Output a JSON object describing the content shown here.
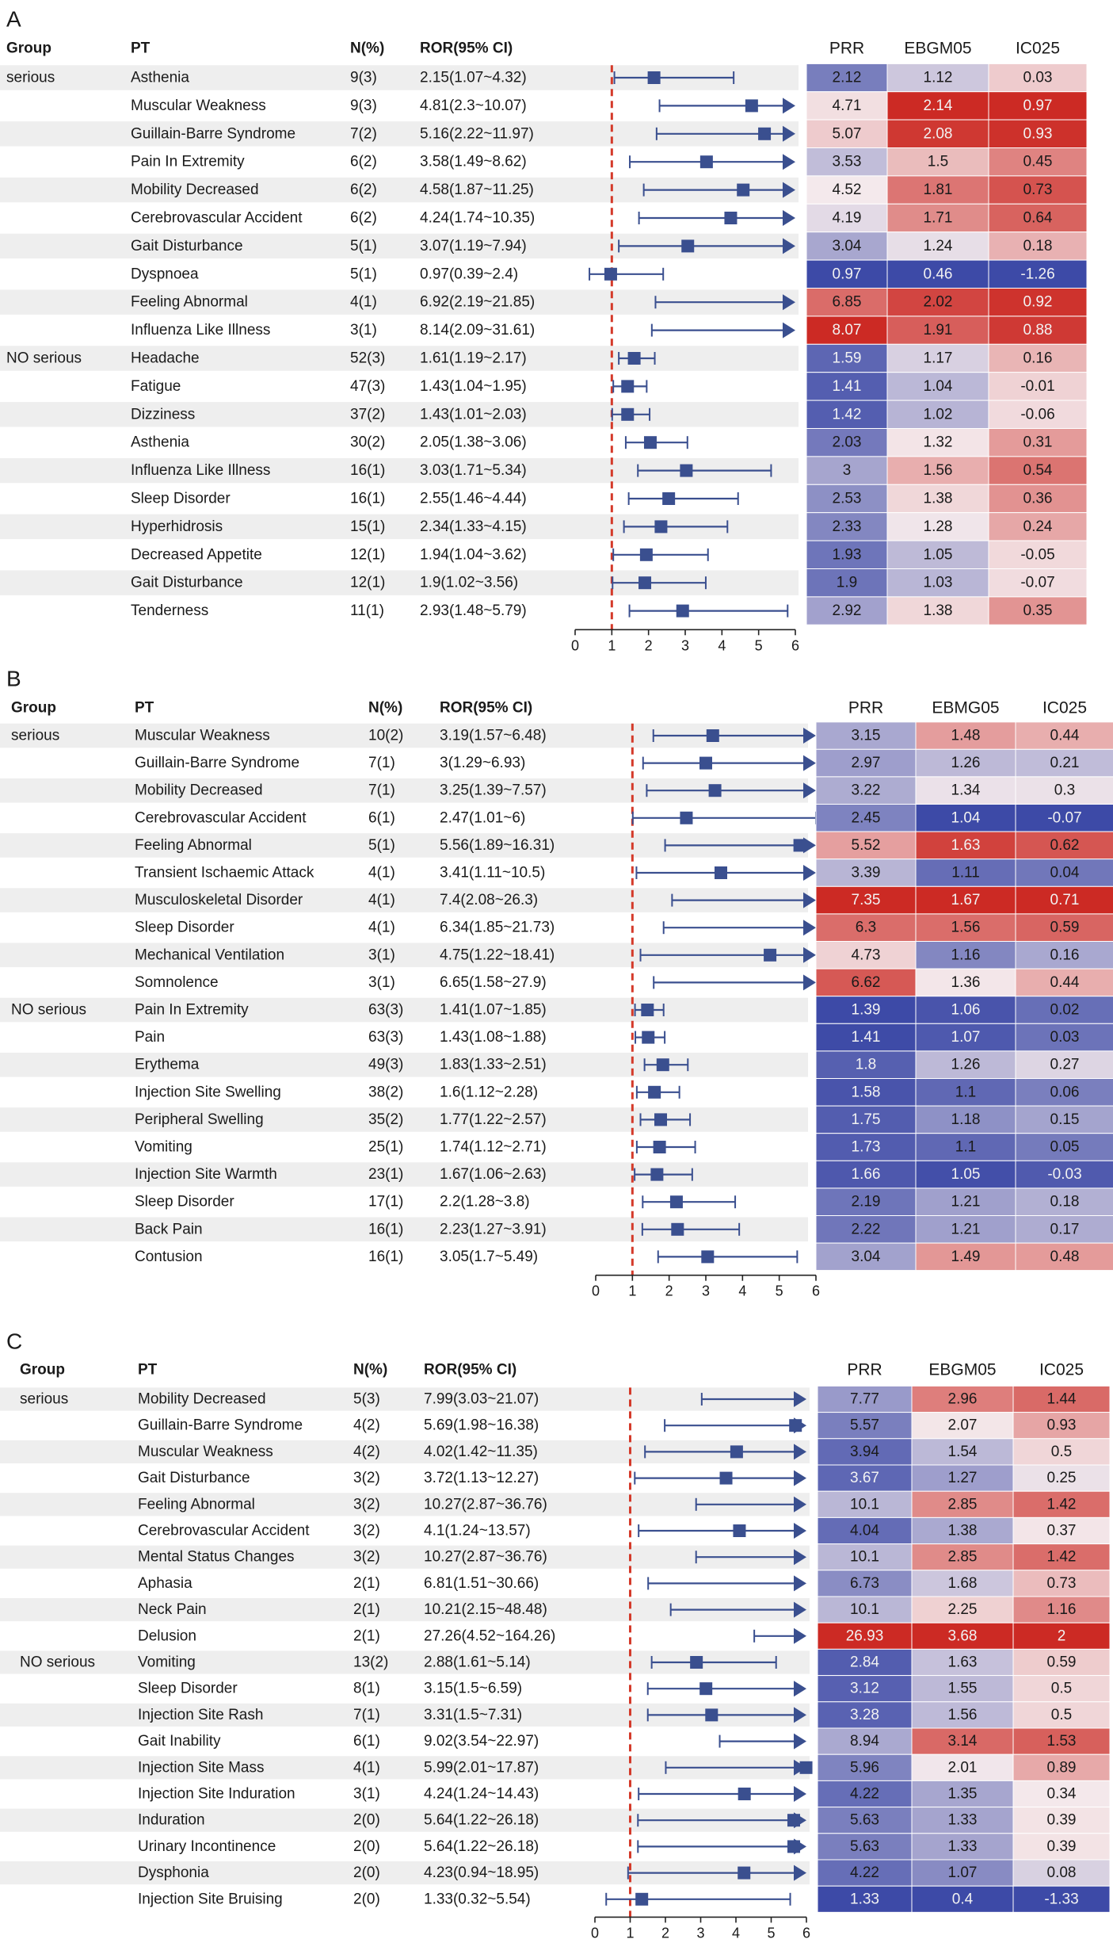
{
  "chart_data": [
    {
      "type": "table",
      "panel_label": "A",
      "columns": {
        "group": "Group",
        "pt": "PT",
        "n": "N(%)",
        "ror": "ROR(95% CI)"
      },
      "heatmap_columns": [
        "PRR",
        "EBGM05",
        "IC025"
      ],
      "x_ticks": [
        "0",
        "1",
        "2",
        "3",
        "4",
        "5",
        "6"
      ],
      "xlim": [
        0,
        6
      ],
      "ref_line": 1,
      "rows": [
        {
          "group": "serious",
          "pt": "Asthenia",
          "n": "9(3)",
          "ror": "2.15(1.07~4.32)",
          "est": 2.15,
          "lo": 1.07,
          "hi": 4.32,
          "prr": "2.12",
          "ebgm05": "1.12",
          "ic025": "0.03"
        },
        {
          "group": "",
          "pt": "Muscular Weakness",
          "n": "9(3)",
          "ror": "4.81(2.3~10.07)",
          "est": 4.81,
          "lo": 2.3,
          "hi": 10.07,
          "prr": "4.71",
          "ebgm05": "2.14",
          "ic025": "0.97"
        },
        {
          "group": "",
          "pt": "Guillain-Barre Syndrome",
          "n": "7(2)",
          "ror": "5.16(2.22~11.97)",
          "est": 5.16,
          "lo": 2.22,
          "hi": 11.97,
          "prr": "5.07",
          "ebgm05": "2.08",
          "ic025": "0.93"
        },
        {
          "group": "",
          "pt": "Pain In Extremity",
          "n": "6(2)",
          "ror": "3.58(1.49~8.62)",
          "est": 3.58,
          "lo": 1.49,
          "hi": 8.62,
          "prr": "3.53",
          "ebgm05": "1.5",
          "ic025": "0.45"
        },
        {
          "group": "",
          "pt": "Mobility Decreased",
          "n": "6(2)",
          "ror": "4.58(1.87~11.25)",
          "est": 4.58,
          "lo": 1.87,
          "hi": 11.25,
          "prr": "4.52",
          "ebgm05": "1.81",
          "ic025": "0.73"
        },
        {
          "group": "",
          "pt": "Cerebrovascular Accident",
          "n": "6(2)",
          "ror": "4.24(1.74~10.35)",
          "est": 4.24,
          "lo": 1.74,
          "hi": 10.35,
          "prr": "4.19",
          "ebgm05": "1.71",
          "ic025": "0.64"
        },
        {
          "group": "",
          "pt": "Gait Disturbance",
          "n": "5(1)",
          "ror": "3.07(1.19~7.94)",
          "est": 3.07,
          "lo": 1.19,
          "hi": 7.94,
          "prr": "3.04",
          "ebgm05": "1.24",
          "ic025": "0.18"
        },
        {
          "group": "",
          "pt": "Dyspnoea",
          "n": "5(1)",
          "ror": "0.97(0.39~2.4)",
          "est": 0.97,
          "lo": 0.39,
          "hi": 2.4,
          "prr": "0.97",
          "ebgm05": "0.46",
          "ic025": "-1.26"
        },
        {
          "group": "",
          "pt": "Feeling Abnormal",
          "n": "4(1)",
          "ror": "6.92(2.19~21.85)",
          "est": 6.92,
          "lo": 2.19,
          "hi": 21.85,
          "prr": "6.85",
          "ebgm05": "2.02",
          "ic025": "0.92"
        },
        {
          "group": "",
          "pt": "Influenza Like Illness",
          "n": "3(1)",
          "ror": "8.14(2.09~31.61)",
          "est": 8.14,
          "lo": 2.09,
          "hi": 31.61,
          "prr": "8.07",
          "ebgm05": "1.91",
          "ic025": "0.88"
        },
        {
          "group": "NO serious",
          "pt": "Headache",
          "n": "52(3)",
          "ror": "1.61(1.19~2.17)",
          "est": 1.61,
          "lo": 1.19,
          "hi": 2.17,
          "prr": "1.59",
          "ebgm05": "1.17",
          "ic025": "0.16"
        },
        {
          "group": "",
          "pt": "Fatigue",
          "n": "47(3)",
          "ror": "1.43(1.04~1.95)",
          "est": 1.43,
          "lo": 1.04,
          "hi": 1.95,
          "prr": "1.41",
          "ebgm05": "1.04",
          "ic025": "-0.01"
        },
        {
          "group": "",
          "pt": "Dizziness",
          "n": "37(2)",
          "ror": "1.43(1.01~2.03)",
          "est": 1.43,
          "lo": 1.01,
          "hi": 2.03,
          "prr": "1.42",
          "ebgm05": "1.02",
          "ic025": "-0.06"
        },
        {
          "group": "",
          "pt": "Asthenia",
          "n": "30(2)",
          "ror": "2.05(1.38~3.06)",
          "est": 2.05,
          "lo": 1.38,
          "hi": 3.06,
          "prr": "2.03",
          "ebgm05": "1.32",
          "ic025": "0.31"
        },
        {
          "group": "",
          "pt": "Influenza Like Illness",
          "n": "16(1)",
          "ror": "3.03(1.71~5.34)",
          "est": 3.03,
          "lo": 1.71,
          "hi": 5.34,
          "prr": "3",
          "ebgm05": "1.56",
          "ic025": "0.54"
        },
        {
          "group": "",
          "pt": "Sleep Disorder",
          "n": "16(1)",
          "ror": "2.55(1.46~4.44)",
          "est": 2.55,
          "lo": 1.46,
          "hi": 4.44,
          "prr": "2.53",
          "ebgm05": "1.38",
          "ic025": "0.36"
        },
        {
          "group": "",
          "pt": "Hyperhidrosis",
          "n": "15(1)",
          "ror": "2.34(1.33~4.15)",
          "est": 2.34,
          "lo": 1.33,
          "hi": 4.15,
          "prr": "2.33",
          "ebgm05": "1.28",
          "ic025": "0.24"
        },
        {
          "group": "",
          "pt": "Decreased Appetite",
          "n": "12(1)",
          "ror": "1.94(1.04~3.62)",
          "est": 1.94,
          "lo": 1.04,
          "hi": 3.62,
          "prr": "1.93",
          "ebgm05": "1.05",
          "ic025": "-0.05"
        },
        {
          "group": "",
          "pt": "Gait Disturbance",
          "n": "12(1)",
          "ror": "1.9(1.02~3.56)",
          "est": 1.9,
          "lo": 1.02,
          "hi": 3.56,
          "prr": "1.9",
          "ebgm05": "1.03",
          "ic025": "-0.07"
        },
        {
          "group": "",
          "pt": "Tenderness",
          "n": "11(1)",
          "ror": "2.93(1.48~5.79)",
          "est": 2.93,
          "lo": 1.48,
          "hi": 5.79,
          "prr": "2.92",
          "ebgm05": "1.38",
          "ic025": "0.35"
        }
      ]
    },
    {
      "type": "table",
      "panel_label": "B",
      "columns": {
        "group": "Group",
        "pt": "PT",
        "n": "N(%)",
        "ror": "ROR(95% CI)"
      },
      "heatmap_columns": [
        "PRR",
        "EBMG05",
        "IC025"
      ],
      "x_ticks": [
        "0",
        "1",
        "2",
        "3",
        "4",
        "5",
        "6"
      ],
      "xlim": [
        0,
        6
      ],
      "ref_line": 1,
      "rows": [
        {
          "group": "serious",
          "pt": "Muscular Weakness",
          "n": "10(2)",
          "ror": "3.19(1.57~6.48)",
          "est": 3.19,
          "lo": 1.57,
          "hi": 6.48,
          "prr": "3.15",
          "ebgm05": "1.48",
          "ic025": "0.44"
        },
        {
          "group": "",
          "pt": "Guillain-Barre Syndrome",
          "n": "7(1)",
          "ror": "3(1.29~6.93)",
          "est": 3,
          "lo": 1.29,
          "hi": 6.93,
          "prr": "2.97",
          "ebgm05": "1.26",
          "ic025": "0.21"
        },
        {
          "group": "",
          "pt": "Mobility Decreased",
          "n": "7(1)",
          "ror": "3.25(1.39~7.57)",
          "est": 3.25,
          "lo": 1.39,
          "hi": 7.57,
          "prr": "3.22",
          "ebgm05": "1.34",
          "ic025": "0.3"
        },
        {
          "group": "",
          "pt": "Cerebrovascular Accident",
          "n": "6(1)",
          "ror": "2.47(1.01~6)",
          "est": 2.47,
          "lo": 1.01,
          "hi": 6,
          "prr": "2.45",
          "ebgm05": "1.04",
          "ic025": "-0.07"
        },
        {
          "group": "",
          "pt": "Feeling Abnormal",
          "n": "5(1)",
          "ror": "5.56(1.89~16.31)",
          "est": 5.56,
          "lo": 1.89,
          "hi": 16.31,
          "prr": "5.52",
          "ebgm05": "1.63",
          "ic025": "0.62"
        },
        {
          "group": "",
          "pt": "Transient Ischaemic Attack",
          "n": "4(1)",
          "ror": "3.41(1.11~10.5)",
          "est": 3.41,
          "lo": 1.11,
          "hi": 10.5,
          "prr": "3.39",
          "ebgm05": "1.11",
          "ic025": "0.04"
        },
        {
          "group": "",
          "pt": "Musculoskeletal Disorder",
          "n": "4(1)",
          "ror": "7.4(2.08~26.3)",
          "est": 7.4,
          "lo": 2.08,
          "hi": 26.3,
          "prr": "7.35",
          "ebgm05": "1.67",
          "ic025": "0.71"
        },
        {
          "group": "",
          "pt": "Sleep Disorder",
          "n": "4(1)",
          "ror": "6.34(1.85~21.73)",
          "est": 6.34,
          "lo": 1.85,
          "hi": 21.73,
          "prr": "6.3",
          "ebgm05": "1.56",
          "ic025": "0.59"
        },
        {
          "group": "",
          "pt": "Mechanical Ventilation",
          "n": "3(1)",
          "ror": "4.75(1.22~18.41)",
          "est": 4.75,
          "lo": 1.22,
          "hi": 18.41,
          "prr": "4.73",
          "ebgm05": "1.16",
          "ic025": "0.16"
        },
        {
          "group": "",
          "pt": "Somnolence",
          "n": "3(1)",
          "ror": "6.65(1.58~27.9)",
          "est": 6.65,
          "lo": 1.58,
          "hi": 27.9,
          "prr": "6.62",
          "ebgm05": "1.36",
          "ic025": "0.44"
        },
        {
          "group": "NO serious",
          "pt": "Pain In Extremity",
          "n": "63(3)",
          "ror": "1.41(1.07~1.85)",
          "est": 1.41,
          "lo": 1.07,
          "hi": 1.85,
          "prr": "1.39",
          "ebgm05": "1.06",
          "ic025": "0.02"
        },
        {
          "group": "",
          "pt": "Pain",
          "n": "63(3)",
          "ror": "1.43(1.08~1.88)",
          "est": 1.43,
          "lo": 1.08,
          "hi": 1.88,
          "prr": "1.41",
          "ebgm05": "1.07",
          "ic025": "0.03"
        },
        {
          "group": "",
          "pt": "Erythema",
          "n": "49(3)",
          "ror": "1.83(1.33~2.51)",
          "est": 1.83,
          "lo": 1.33,
          "hi": 2.51,
          "prr": "1.8",
          "ebgm05": "1.26",
          "ic025": "0.27"
        },
        {
          "group": "",
          "pt": "Injection Site Swelling",
          "n": "38(2)",
          "ror": "1.6(1.12~2.28)",
          "est": 1.6,
          "lo": 1.12,
          "hi": 2.28,
          "prr": "1.58",
          "ebgm05": "1.1",
          "ic025": "0.06"
        },
        {
          "group": "",
          "pt": "Peripheral Swelling",
          "n": "35(2)",
          "ror": "1.77(1.22~2.57)",
          "est": 1.77,
          "lo": 1.22,
          "hi": 2.57,
          "prr": "1.75",
          "ebgm05": "1.18",
          "ic025": "0.15"
        },
        {
          "group": "",
          "pt": "Vomiting",
          "n": "25(1)",
          "ror": "1.74(1.12~2.71)",
          "est": 1.74,
          "lo": 1.12,
          "hi": 2.71,
          "prr": "1.73",
          "ebgm05": "1.1",
          "ic025": "0.05"
        },
        {
          "group": "",
          "pt": "Injection Site Warmth",
          "n": "23(1)",
          "ror": "1.67(1.06~2.63)",
          "est": 1.67,
          "lo": 1.06,
          "hi": 2.63,
          "prr": "1.66",
          "ebgm05": "1.05",
          "ic025": "-0.03"
        },
        {
          "group": "",
          "pt": "Sleep Disorder",
          "n": "17(1)",
          "ror": "2.2(1.28~3.8)",
          "est": 2.2,
          "lo": 1.28,
          "hi": 3.8,
          "prr": "2.19",
          "ebgm05": "1.21",
          "ic025": "0.18"
        },
        {
          "group": "",
          "pt": "Back Pain",
          "n": "16(1)",
          "ror": "2.23(1.27~3.91)",
          "est": 2.23,
          "lo": 1.27,
          "hi": 3.91,
          "prr": "2.22",
          "ebgm05": "1.21",
          "ic025": "0.17"
        },
        {
          "group": "",
          "pt": "Contusion",
          "n": "16(1)",
          "ror": "3.05(1.7~5.49)",
          "est": 3.05,
          "lo": 1.7,
          "hi": 5.49,
          "prr": "3.04",
          "ebgm05": "1.49",
          "ic025": "0.48"
        }
      ]
    },
    {
      "type": "table",
      "panel_label": "C",
      "columns": {
        "group": "Group",
        "pt": "PT",
        "n": "N(%)",
        "ror": "ROR(95% CI)"
      },
      "heatmap_columns": [
        "PRR",
        "EBGM05",
        "IC025"
      ],
      "x_ticks": [
        "0",
        "1",
        "2",
        "3",
        "4",
        "5",
        "6"
      ],
      "xlim": [
        0,
        6
      ],
      "ref_line": 1,
      "rows": [
        {
          "group": "serious",
          "pt": "Mobility Decreased",
          "n": "5(3)",
          "ror": "7.99(3.03~21.07)",
          "est": 7.99,
          "lo": 3.03,
          "hi": 21.07,
          "prr": "7.77",
          "ebgm05": "2.96",
          "ic025": "1.44"
        },
        {
          "group": "",
          "pt": "Guillain-Barre Syndrome",
          "n": "4(2)",
          "ror": "5.69(1.98~16.38)",
          "est": 5.69,
          "lo": 1.98,
          "hi": 16.38,
          "prr": "5.57",
          "ebgm05": "2.07",
          "ic025": "0.93"
        },
        {
          "group": "",
          "pt": "Muscular Weakness",
          "n": "4(2)",
          "ror": "4.02(1.42~11.35)",
          "est": 4.02,
          "lo": 1.42,
          "hi": 11.35,
          "prr": "3.94",
          "ebgm05": "1.54",
          "ic025": "0.5"
        },
        {
          "group": "",
          "pt": "Gait Disturbance",
          "n": "3(2)",
          "ror": "3.72(1.13~12.27)",
          "est": 3.72,
          "lo": 1.13,
          "hi": 12.27,
          "prr": "3.67",
          "ebgm05": "1.27",
          "ic025": "0.25"
        },
        {
          "group": "",
          "pt": "Feeling Abnormal",
          "n": "3(2)",
          "ror": "10.27(2.87~36.76)",
          "est": 10.27,
          "lo": 2.87,
          "hi": 36.76,
          "prr": "10.1",
          "ebgm05": "2.85",
          "ic025": "1.42"
        },
        {
          "group": "",
          "pt": "Cerebrovascular Accident",
          "n": "3(2)",
          "ror": "4.1(1.24~13.57)",
          "est": 4.1,
          "lo": 1.24,
          "hi": 13.57,
          "prr": "4.04",
          "ebgm05": "1.38",
          "ic025": "0.37"
        },
        {
          "group": "",
          "pt": "Mental Status Changes",
          "n": "3(2)",
          "ror": "10.27(2.87~36.76)",
          "est": 10.27,
          "lo": 2.87,
          "hi": 36.76,
          "prr": "10.1",
          "ebgm05": "2.85",
          "ic025": "1.42"
        },
        {
          "group": "",
          "pt": "Aphasia",
          "n": "2(1)",
          "ror": "6.81(1.51~30.66)",
          "est": 6.81,
          "lo": 1.51,
          "hi": 30.66,
          "prr": "6.73",
          "ebgm05": "1.68",
          "ic025": "0.73"
        },
        {
          "group": "",
          "pt": "Neck Pain",
          "n": "2(1)",
          "ror": "10.21(2.15~48.48)",
          "est": 10.21,
          "lo": 2.15,
          "hi": 48.48,
          "prr": "10.1",
          "ebgm05": "2.25",
          "ic025": "1.16"
        },
        {
          "group": "",
          "pt": "Delusion",
          "n": "2(1)",
          "ror": "27.26(4.52~164.26)",
          "est": 27.26,
          "lo": 4.52,
          "hi": 164.26,
          "prr": "26.93",
          "ebgm05": "3.68",
          "ic025": "2"
        },
        {
          "group": "NO serious",
          "pt": "Vomiting",
          "n": "13(2)",
          "ror": "2.88(1.61~5.14)",
          "est": 2.88,
          "lo": 1.61,
          "hi": 5.14,
          "prr": "2.84",
          "ebgm05": "1.63",
          "ic025": "0.59"
        },
        {
          "group": "",
          "pt": "Sleep Disorder",
          "n": "8(1)",
          "ror": "3.15(1.5~6.59)",
          "est": 3.15,
          "lo": 1.5,
          "hi": 6.59,
          "prr": "3.12",
          "ebgm05": "1.55",
          "ic025": "0.5"
        },
        {
          "group": "",
          "pt": "Injection Site Rash",
          "n": "7(1)",
          "ror": "3.31(1.5~7.31)",
          "est": 3.31,
          "lo": 1.5,
          "hi": 7.31,
          "prr": "3.28",
          "ebgm05": "1.56",
          "ic025": "0.5"
        },
        {
          "group": "",
          "pt": "Gait Inability",
          "n": "6(1)",
          "ror": "9.02(3.54~22.97)",
          "est": 9.02,
          "lo": 3.54,
          "hi": 22.97,
          "prr": "8.94",
          "ebgm05": "3.14",
          "ic025": "1.53"
        },
        {
          "group": "",
          "pt": "Injection Site Mass",
          "n": "4(1)",
          "ror": "5.99(2.01~17.87)",
          "est": 5.99,
          "lo": 2.01,
          "hi": 17.87,
          "prr": "5.96",
          "ebgm05": "2.01",
          "ic025": "0.89"
        },
        {
          "group": "",
          "pt": "Injection Site Induration",
          "n": "3(1)",
          "ror": "4.24(1.24~14.43)",
          "est": 4.24,
          "lo": 1.24,
          "hi": 14.43,
          "prr": "4.22",
          "ebgm05": "1.35",
          "ic025": "0.34"
        },
        {
          "group": "",
          "pt": "Induration",
          "n": "2(0)",
          "ror": "5.64(1.22~26.18)",
          "est": 5.64,
          "lo": 1.22,
          "hi": 26.18,
          "prr": "5.63",
          "ebgm05": "1.33",
          "ic025": "0.39"
        },
        {
          "group": "",
          "pt": "Urinary Incontinence",
          "n": "2(0)",
          "ror": "5.64(1.22~26.18)",
          "est": 5.64,
          "lo": 1.22,
          "hi": 26.18,
          "prr": "5.63",
          "ebgm05": "1.33",
          "ic025": "0.39"
        },
        {
          "group": "",
          "pt": "Dysphonia",
          "n": "2(0)",
          "ror": "4.23(0.94~18.95)",
          "est": 4.23,
          "lo": 0.94,
          "hi": 18.95,
          "prr": "4.22",
          "ebgm05": "1.07",
          "ic025": "0.08"
        },
        {
          "group": "",
          "pt": "Injection Site Bruising",
          "n": "2(0)",
          "ror": "1.33(0.32~5.54)",
          "est": 1.33,
          "lo": 0.32,
          "hi": 5.54,
          "prr": "1.33",
          "ebgm05": "0.4",
          "ic025": "-1.33"
        }
      ]
    }
  ],
  "colors": {
    "marker": "#3a4f8f",
    "ref_line": "#d43a2a",
    "band": "#eeeeee",
    "heat_high": "#cc2a24",
    "heat_mid": "#f4e9ec",
    "heat_low": "#3d4aa7"
  }
}
